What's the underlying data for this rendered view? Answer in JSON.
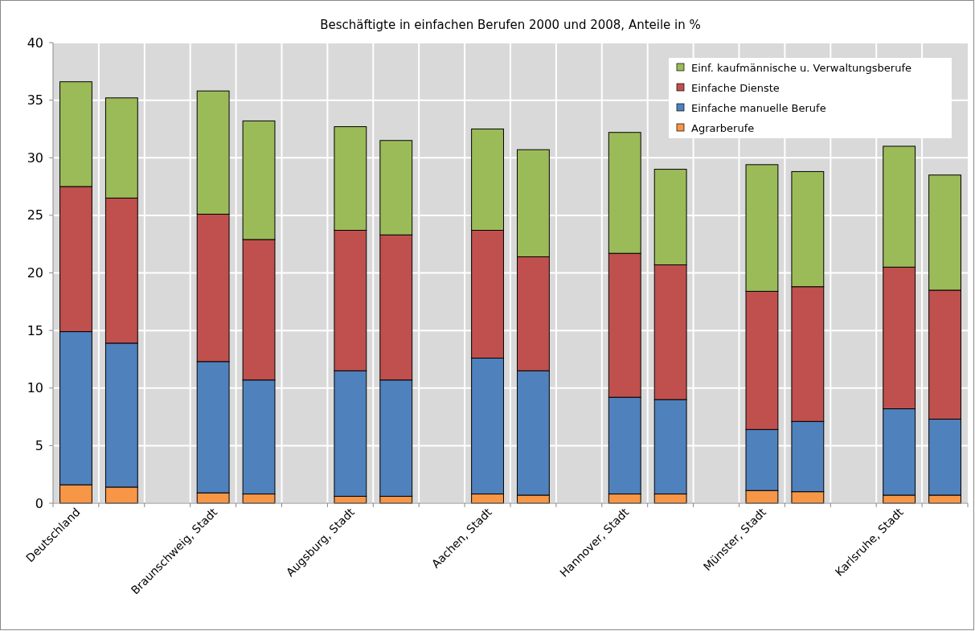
{
  "chart_data": {
    "type": "bar",
    "stacked": true,
    "title": "Beschäftigte in einfachen Berufen 2000 und 2008, Anteile in %",
    "categories": [
      "Deutschland",
      null,
      null,
      "Braunschweig, Stadt",
      null,
      null,
      "Augsburg, Stadt",
      null,
      null,
      "Aachen, Stadt",
      null,
      null,
      "Hannover, Stadt",
      null,
      null,
      "Münster, Stadt",
      null,
      null,
      "Karlsruhe, Stadt",
      null
    ],
    "series": [
      {
        "name": "Agrarberufe",
        "color": "#f79646",
        "values": [
          1.6,
          1.4,
          null,
          0.9,
          0.8,
          null,
          0.6,
          0.6,
          null,
          0.8,
          0.7,
          null,
          0.8,
          0.8,
          null,
          1.1,
          1.0,
          null,
          0.7,
          0.7
        ]
      },
      {
        "name": "Einfache manuelle Berufe",
        "color": "#4f81bd",
        "values": [
          13.3,
          12.5,
          null,
          11.4,
          9.9,
          null,
          10.9,
          10.1,
          null,
          11.8,
          10.8,
          null,
          8.4,
          8.2,
          null,
          5.3,
          6.1,
          null,
          7.5,
          6.6
        ]
      },
      {
        "name": "Einfache Dienste",
        "color": "#c0504d",
        "values": [
          12.6,
          12.6,
          null,
          12.8,
          12.2,
          null,
          12.2,
          12.6,
          null,
          11.1,
          9.9,
          null,
          12.5,
          11.7,
          null,
          12.0,
          11.7,
          null,
          12.3,
          11.2
        ]
      },
      {
        "name": "Einf. kaufmännische u. Verwaltungsberufe",
        "color": "#9bbb59",
        "values": [
          9.1,
          8.7,
          null,
          10.7,
          10.3,
          null,
          9.0,
          8.2,
          null,
          8.8,
          9.3,
          null,
          10.5,
          8.3,
          null,
          11.0,
          10.0,
          null,
          10.5,
          10.0
        ]
      }
    ],
    "ylim": [
      0,
      40
    ],
    "yticks": [
      0,
      5,
      10,
      15,
      20,
      25,
      30,
      35,
      40
    ],
    "grid": true,
    "legend": "top right"
  }
}
